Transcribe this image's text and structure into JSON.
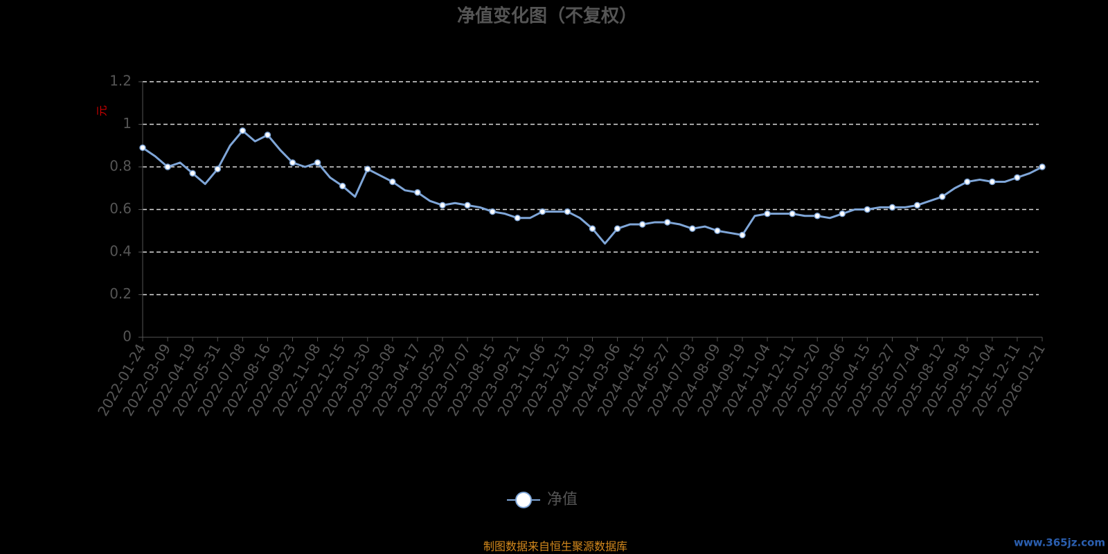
{
  "chart_data": {
    "type": "line",
    "title": "净值变化图（不复权）",
    "y_label": "元",
    "categories": [
      "2022-01-24",
      null,
      "2022-03-09",
      null,
      "2022-04-19",
      null,
      "2022-05-31",
      null,
      "2022-07-08",
      null,
      "2022-08-16",
      null,
      "2022-09-23",
      null,
      "2022-11-08",
      null,
      "2022-12-15",
      null,
      "2023-01-30",
      null,
      "2023-03-08",
      null,
      "2023-04-17",
      null,
      "2023-05-29",
      null,
      "2023-07-07",
      null,
      "2023-08-15",
      null,
      "2023-09-21",
      null,
      "2023-11-06",
      null,
      "2023-12-13",
      null,
      "2024-01-19",
      null,
      "2024-03-06",
      null,
      "2024-04-15",
      null,
      "2024-05-27",
      null,
      "2024-07-03",
      null,
      "2024-08-09",
      null,
      "2024-09-19",
      null,
      "2024-11-04",
      null,
      "2024-12-11",
      null,
      "2025-01-20",
      null,
      "2025-03-06",
      null,
      "2025-04-15",
      null,
      "2025-05-27",
      null,
      "2025-07-04",
      null,
      "2025-08-12",
      null,
      "2025-09-18",
      null,
      "2025-11-04",
      null,
      "2025-12-11",
      null,
      "2026-01-21"
    ],
    "series": [
      {
        "name": "净值",
        "color": "#7fa6d8",
        "values": [
          0.89,
          0.85,
          0.8,
          0.82,
          0.77,
          0.72,
          0.79,
          0.9,
          0.97,
          0.92,
          0.95,
          0.88,
          0.82,
          0.8,
          0.82,
          0.75,
          0.71,
          0.66,
          0.79,
          0.76,
          0.73,
          0.69,
          0.68,
          0.64,
          0.62,
          0.63,
          0.62,
          0.61,
          0.59,
          0.58,
          0.56,
          0.56,
          0.59,
          0.59,
          0.59,
          0.56,
          0.51,
          0.44,
          0.51,
          0.53,
          0.53,
          0.54,
          0.54,
          0.53,
          0.51,
          0.52,
          0.5,
          0.49,
          0.48,
          0.57,
          0.58,
          0.58,
          0.58,
          0.57,
          0.57,
          0.56,
          0.58,
          0.6,
          0.6,
          0.61,
          0.61,
          0.61,
          0.62,
          0.64,
          0.66,
          0.7,
          0.73,
          0.74,
          0.73,
          0.73,
          0.75,
          0.77,
          0.8
        ]
      }
    ],
    "ylim": [
      0,
      1.2
    ],
    "yticks": [
      0,
      0.2,
      0.4,
      0.6,
      0.8,
      1,
      1.2
    ],
    "grid": true
  },
  "source": "制图数据来自恒生聚源数据库",
  "watermark": "www.365jz.com"
}
